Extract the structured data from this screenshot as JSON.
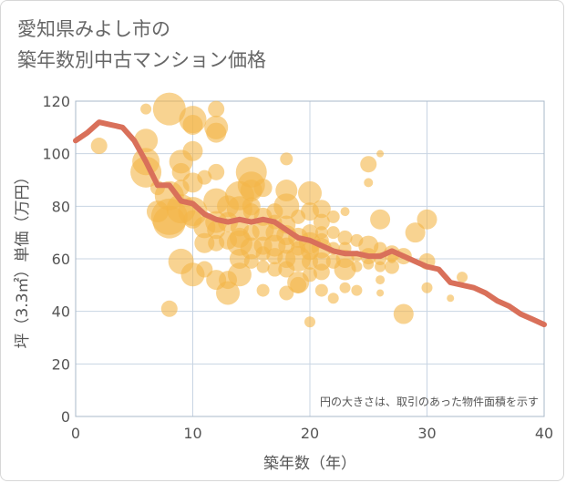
{
  "title": {
    "line1": "愛知県みよし市の",
    "line2": "築年数別中古マンション価格"
  },
  "colors": {
    "bubble": "#f3b647",
    "line": "#d9705a",
    "grid": "#c8d4e3",
    "plot_border": "#aab8c8"
  },
  "chart_data": {
    "type": "scatter",
    "xlabel": "築年数（年）",
    "ylabel": "坪（3.3㎡）単価（万円）",
    "xlim": [
      0,
      40
    ],
    "ylim": [
      0,
      120
    ],
    "x_ticks": [
      0,
      10,
      20,
      30,
      40
    ],
    "y_ticks": [
      0,
      20,
      40,
      60,
      80,
      100,
      120
    ],
    "grid": true,
    "annotation": "円の大きさは、取引のあった物件面積を示す",
    "series": [
      {
        "type": "line",
        "points": [
          [
            0,
            105
          ],
          [
            1,
            108
          ],
          [
            2,
            112
          ],
          [
            3,
            111
          ],
          [
            4,
            110
          ],
          [
            5,
            105
          ],
          [
            6,
            97
          ],
          [
            7,
            88
          ],
          [
            8,
            88
          ],
          [
            9,
            82
          ],
          [
            10,
            81
          ],
          [
            11,
            77
          ],
          [
            12,
            75
          ],
          [
            13,
            74
          ],
          [
            14,
            75
          ],
          [
            15,
            74
          ],
          [
            16,
            75
          ],
          [
            17,
            74
          ],
          [
            18,
            71
          ],
          [
            19,
            68
          ],
          [
            20,
            67
          ],
          [
            21,
            65
          ],
          [
            22,
            63
          ],
          [
            23,
            62
          ],
          [
            24,
            62
          ],
          [
            25,
            61
          ],
          [
            26,
            61
          ],
          [
            27,
            63
          ],
          [
            28,
            61
          ],
          [
            29,
            59
          ],
          [
            30,
            57
          ],
          [
            31,
            56
          ],
          [
            32,
            51
          ],
          [
            33,
            50
          ],
          [
            34,
            49
          ],
          [
            35,
            47
          ],
          [
            36,
            44
          ],
          [
            37,
            42
          ],
          [
            38,
            39
          ],
          [
            39,
            37
          ],
          [
            40,
            35
          ]
        ]
      },
      {
        "type": "bubble",
        "points": [
          [
            2,
            103,
            9
          ],
          [
            6,
            117,
            6
          ],
          [
            6,
            105,
            13
          ],
          [
            6,
            97,
            15
          ],
          [
            6,
            93,
            17
          ],
          [
            7,
            87,
            8
          ],
          [
            7,
            78,
            12
          ],
          [
            8,
            117,
            18
          ],
          [
            8,
            84,
            16
          ],
          [
            8,
            76,
            20
          ],
          [
            8,
            74,
            18
          ],
          [
            8,
            41,
            9
          ],
          [
            9,
            97,
            13
          ],
          [
            9,
            93,
            10
          ],
          [
            9,
            87,
            9
          ],
          [
            9,
            79,
            16
          ],
          [
            9,
            59,
            14
          ],
          [
            10,
            113,
            15
          ],
          [
            10,
            111,
            11
          ],
          [
            10,
            101,
            11
          ],
          [
            10,
            89,
            11
          ],
          [
            10,
            78,
            16
          ],
          [
            10,
            54,
            13
          ],
          [
            10,
            75,
            10
          ],
          [
            11,
            91,
            8
          ],
          [
            11,
            72,
            12
          ],
          [
            11,
            66,
            11
          ],
          [
            11,
            56,
            9
          ],
          [
            12,
            117,
            9
          ],
          [
            12,
            110,
            13
          ],
          [
            12,
            108,
            11
          ],
          [
            12,
            93,
            9
          ],
          [
            12,
            82,
            14
          ],
          [
            12,
            74,
            12
          ],
          [
            12,
            71,
            10
          ],
          [
            12,
            66,
            9
          ],
          [
            12,
            52,
            11
          ],
          [
            13,
            80,
            12
          ],
          [
            13,
            74,
            11
          ],
          [
            13,
            67,
            10
          ],
          [
            13,
            52,
            10
          ],
          [
            13,
            47,
            13
          ],
          [
            14,
            84,
            16
          ],
          [
            14,
            79,
            14
          ],
          [
            14,
            72,
            10
          ],
          [
            14,
            68,
            11
          ],
          [
            14,
            66,
            14
          ],
          [
            14,
            60,
            11
          ],
          [
            14,
            54,
            13
          ],
          [
            15,
            93,
            17
          ],
          [
            15,
            88,
            15
          ],
          [
            15,
            86,
            12
          ],
          [
            15,
            80,
            10
          ],
          [
            15,
            78,
            9
          ],
          [
            15,
            70,
            9
          ],
          [
            15,
            64,
            12
          ],
          [
            15,
            59,
            8
          ],
          [
            16,
            87,
            10
          ],
          [
            16,
            76,
            10
          ],
          [
            16,
            71,
            12
          ],
          [
            16,
            65,
            10
          ],
          [
            16,
            62,
            8
          ],
          [
            16,
            57,
            7
          ],
          [
            16,
            48,
            7
          ],
          [
            17,
            78,
            9
          ],
          [
            17,
            74,
            8
          ],
          [
            17,
            70,
            10
          ],
          [
            17,
            65,
            12
          ],
          [
            17,
            61,
            9
          ],
          [
            17,
            56,
            8
          ],
          [
            18,
            98,
            7
          ],
          [
            18,
            86,
            12
          ],
          [
            18,
            80,
            14
          ],
          [
            18,
            73,
            10
          ],
          [
            18,
            69,
            11
          ],
          [
            18,
            65,
            9
          ],
          [
            18,
            60,
            10
          ],
          [
            18,
            56,
            9
          ],
          [
            18,
            47,
            8
          ],
          [
            19,
            76,
            8
          ],
          [
            19,
            68,
            11
          ],
          [
            19,
            64,
            8
          ],
          [
            19,
            60,
            14
          ],
          [
            19,
            51,
            12
          ],
          [
            19,
            50,
            9
          ],
          [
            20,
            85,
            13
          ],
          [
            20,
            78,
            10
          ],
          [
            20,
            70,
            9
          ],
          [
            20,
            66,
            12
          ],
          [
            20,
            63,
            10
          ],
          [
            20,
            59,
            9
          ],
          [
            20,
            54,
            8
          ],
          [
            20,
            36,
            6
          ],
          [
            21,
            79,
            10
          ],
          [
            21,
            74,
            9
          ],
          [
            21,
            70,
            7
          ],
          [
            21,
            67,
            8
          ],
          [
            21,
            64,
            11
          ],
          [
            21,
            59,
            10
          ],
          [
            21,
            55,
            9
          ],
          [
            21,
            48,
            7
          ],
          [
            22,
            76,
            7
          ],
          [
            22,
            70,
            7
          ],
          [
            22,
            64,
            7
          ],
          [
            22,
            59,
            8
          ],
          [
            22,
            45,
            6
          ],
          [
            23,
            78,
            5
          ],
          [
            23,
            68,
            8
          ],
          [
            23,
            64,
            7
          ],
          [
            23,
            60,
            10
          ],
          [
            23,
            56,
            12
          ],
          [
            23,
            49,
            6
          ],
          [
            24,
            67,
            7
          ],
          [
            24,
            61,
            6
          ],
          [
            24,
            57,
            6
          ],
          [
            24,
            48,
            6
          ],
          [
            25,
            96,
            9
          ],
          [
            25,
            89,
            5
          ],
          [
            25,
            65,
            11
          ],
          [
            25,
            61,
            9
          ],
          [
            25,
            58,
            6
          ],
          [
            26,
            100,
            4
          ],
          [
            26,
            75,
            11
          ],
          [
            26,
            64,
            7
          ],
          [
            26,
            60,
            7
          ],
          [
            26,
            57,
            6
          ],
          [
            26,
            52,
            5
          ],
          [
            26,
            47,
            4
          ],
          [
            27,
            62,
            9
          ],
          [
            27,
            57,
            8
          ],
          [
            27,
            60,
            5
          ],
          [
            28,
            61,
            9
          ],
          [
            28,
            39,
            11
          ],
          [
            29,
            70,
            11
          ],
          [
            30,
            75,
            11
          ],
          [
            30,
            59,
            9
          ],
          [
            30,
            49,
            6
          ],
          [
            32,
            45,
            4
          ],
          [
            33,
            53,
            6
          ]
        ]
      }
    ]
  }
}
